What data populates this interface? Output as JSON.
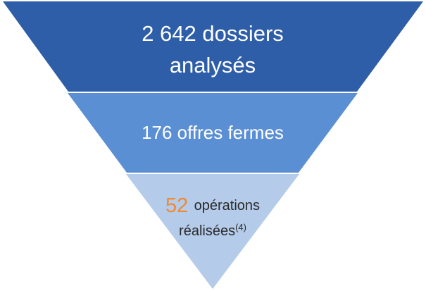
{
  "funnel": {
    "levels": [
      {
        "lines": [
          "2 642 dossiers",
          "analysés"
        ]
      },
      {
        "lines": [
          "176 offres fermes"
        ]
      },
      {
        "number": "52",
        "text": "opérations",
        "line2": "réalisées",
        "note": "(4)"
      }
    ]
  }
}
